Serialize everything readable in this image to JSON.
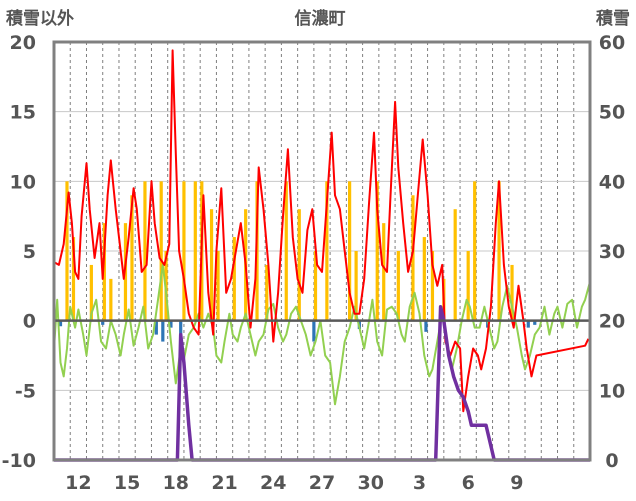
{
  "chart_data": {
    "type": "line",
    "title": "信濃町",
    "ylabel_left": "積雪以外",
    "ylabel_right": "積雪",
    "ylim_left": [
      -10,
      20
    ],
    "ylim_right": [
      0,
      60
    ],
    "yticks_left": [
      "-10",
      "-5",
      "0",
      "5",
      "10",
      "15",
      "20"
    ],
    "yticks_right": [
      "0",
      "10",
      "20",
      "30",
      "40",
      "50",
      "60"
    ],
    "xlim": [
      0,
      33
    ],
    "xtick_labels": [
      "12",
      "15",
      "18",
      "21",
      "24",
      "27",
      "30",
      "3",
      "6",
      "9"
    ],
    "xtick_positions": [
      1.5,
      4.5,
      7.5,
      10.5,
      13.5,
      16.5,
      19.5,
      22.5,
      25.5,
      28.5
    ],
    "grid": "vertical dashed daily",
    "colors": {
      "precipitation_pos": "#ffc000",
      "precipitation_neg": "#2e75b6",
      "temperature": "#ff0000",
      "other": "#92d050",
      "snow_depth": "#7030a0",
      "frame": "#808080",
      "zero_line": "#595959"
    },
    "series": [
      {
        "axis": "left",
        "style": "bars",
        "values": [
          [
            0.8,
            10
          ],
          [
            1.2,
            6
          ],
          [
            2.3,
            4
          ],
          [
            3.1,
            7
          ],
          [
            3.5,
            3
          ],
          [
            4.4,
            7
          ],
          [
            4.8,
            9
          ],
          [
            5.6,
            10
          ],
          [
            6.6,
            10
          ],
          [
            6.9,
            5
          ],
          [
            8.0,
            10
          ],
          [
            8.7,
            10
          ],
          [
            9.1,
            10
          ],
          [
            9.7,
            8
          ],
          [
            10.1,
            5
          ],
          [
            11.1,
            6
          ],
          [
            11.8,
            8
          ],
          [
            12.5,
            10
          ],
          [
            13.1,
            4
          ],
          [
            14.3,
            10
          ],
          [
            15.1,
            8
          ],
          [
            16.1,
            5
          ],
          [
            16.8,
            10
          ],
          [
            18.2,
            10
          ],
          [
            18.6,
            5
          ],
          [
            19.9,
            10
          ],
          [
            20.3,
            7
          ],
          [
            21.2,
            5
          ],
          [
            22.1,
            9
          ],
          [
            22.8,
            6
          ],
          [
            23.3,
            5
          ],
          [
            24.0,
            3
          ],
          [
            24.7,
            8
          ],
          [
            25.5,
            5
          ],
          [
            25.9,
            10
          ],
          [
            27.4,
            10
          ],
          [
            28.2,
            4
          ],
          [
            0.4,
            -0.4
          ],
          [
            3.0,
            -0.3
          ],
          [
            6.3,
            -1.0
          ],
          [
            6.7,
            -1.5
          ],
          [
            7.2,
            -0.5
          ],
          [
            7.8,
            -1.0
          ],
          [
            16.0,
            -1.5
          ],
          [
            18.8,
            -0.6
          ],
          [
            22.9,
            -0.8
          ],
          [
            26.7,
            -0.5
          ],
          [
            29.2,
            -0.5
          ],
          [
            29.6,
            -0.3
          ]
        ]
      },
      {
        "axis": "left",
        "style": "line",
        "values": [
          [
            0.0,
            4.2
          ],
          [
            0.3,
            4.0
          ],
          [
            0.6,
            5.5
          ],
          [
            0.9,
            9.2
          ],
          [
            1.1,
            7.0
          ],
          [
            1.3,
            3.5
          ],
          [
            1.5,
            3.0
          ],
          [
            1.7,
            7.5
          ],
          [
            2.0,
            11.3
          ],
          [
            2.2,
            8.0
          ],
          [
            2.5,
            4.5
          ],
          [
            2.8,
            7.0
          ],
          [
            3.0,
            3.0
          ],
          [
            3.3,
            9.0
          ],
          [
            3.5,
            11.5
          ],
          [
            3.8,
            8.0
          ],
          [
            4.1,
            5.0
          ],
          [
            4.3,
            3.0
          ],
          [
            4.6,
            6.0
          ],
          [
            4.9,
            9.5
          ],
          [
            5.1,
            8.0
          ],
          [
            5.4,
            3.5
          ],
          [
            5.7,
            4.0
          ],
          [
            6.0,
            10.0
          ],
          [
            6.2,
            7.0
          ],
          [
            6.5,
            4.5
          ],
          [
            6.8,
            4.0
          ],
          [
            7.1,
            5.5
          ],
          [
            7.3,
            19.4
          ],
          [
            7.5,
            12.0
          ],
          [
            7.7,
            5.0
          ],
          [
            8.0,
            3.0
          ],
          [
            8.3,
            0.5
          ],
          [
            8.6,
            -0.5
          ],
          [
            8.9,
            -1.0
          ],
          [
            9.2,
            9.0
          ],
          [
            9.5,
            2.0
          ],
          [
            9.8,
            -1.0
          ],
          [
            10.0,
            5.0
          ],
          [
            10.3,
            9.5
          ],
          [
            10.6,
            2.0
          ],
          [
            10.9,
            3.0
          ],
          [
            11.2,
            5.0
          ],
          [
            11.5,
            7.0
          ],
          [
            11.8,
            4.0
          ],
          [
            12.1,
            -0.5
          ],
          [
            12.4,
            3.0
          ],
          [
            12.6,
            11.0
          ],
          [
            12.9,
            8.0
          ],
          [
            13.2,
            4.0
          ],
          [
            13.5,
            -1.5
          ],
          [
            13.8,
            2.0
          ],
          [
            14.1,
            7.5
          ],
          [
            14.4,
            12.3
          ],
          [
            14.7,
            6.0
          ],
          [
            15.0,
            3.0
          ],
          [
            15.3,
            2.0
          ],
          [
            15.6,
            6.5
          ],
          [
            15.9,
            8.0
          ],
          [
            16.2,
            4.0
          ],
          [
            16.5,
            3.5
          ],
          [
            16.8,
            8.5
          ],
          [
            17.1,
            13.5
          ],
          [
            17.3,
            9.0
          ],
          [
            17.6,
            8.0
          ],
          [
            17.9,
            5.0
          ],
          [
            18.2,
            2.0
          ],
          [
            18.5,
            0.5
          ],
          [
            18.8,
            0.5
          ],
          [
            19.1,
            3.0
          ],
          [
            19.4,
            8.5
          ],
          [
            19.7,
            13.5
          ],
          [
            19.9,
            8.0
          ],
          [
            20.2,
            4.0
          ],
          [
            20.5,
            3.5
          ],
          [
            20.7,
            8.5
          ],
          [
            21.0,
            15.7
          ],
          [
            21.2,
            11.0
          ],
          [
            21.5,
            7.0
          ],
          [
            21.8,
            3.5
          ],
          [
            22.1,
            5.0
          ],
          [
            22.4,
            9.0
          ],
          [
            22.7,
            13.0
          ],
          [
            23.0,
            9.0
          ],
          [
            23.3,
            4.0
          ],
          [
            23.6,
            2.5
          ],
          [
            23.9,
            4.0
          ],
          [
            24.1,
            -1.5
          ],
          [
            24.4,
            -2.5
          ],
          [
            24.7,
            -1.5
          ],
          [
            25.0,
            -2.0
          ],
          [
            25.2,
            -6.5
          ],
          [
            25.5,
            -4.0
          ],
          [
            25.8,
            -2.0
          ],
          [
            26.1,
            -2.5
          ],
          [
            26.3,
            -3.5
          ],
          [
            26.6,
            -2.0
          ],
          [
            26.9,
            1.0
          ],
          [
            27.2,
            7.0
          ],
          [
            27.4,
            10.0
          ],
          [
            27.7,
            4.0
          ],
          [
            28.0,
            1.0
          ],
          [
            28.3,
            -0.5
          ],
          [
            28.6,
            2.5
          ],
          [
            28.9,
            0.0
          ],
          [
            29.1,
            -2.0
          ],
          [
            29.4,
            -4.0
          ],
          [
            29.7,
            -2.5
          ],
          [
            32.7,
            -1.8
          ],
          [
            32.9,
            -1.3
          ]
        ]
      },
      {
        "axis": "left",
        "style": "line",
        "values": [
          [
            0.0,
            -2.0
          ],
          [
            0.2,
            1.5
          ],
          [
            0.4,
            -3.0
          ],
          [
            0.6,
            -4.0
          ],
          [
            0.8,
            -2.0
          ],
          [
            1.0,
            1.0
          ],
          [
            1.3,
            -0.5
          ],
          [
            1.5,
            0.8
          ],
          [
            1.8,
            -1.0
          ],
          [
            2.0,
            -2.5
          ],
          [
            2.3,
            0.5
          ],
          [
            2.6,
            1.5
          ],
          [
            2.9,
            -1.5
          ],
          [
            3.2,
            -2.0
          ],
          [
            3.5,
            0.0
          ],
          [
            3.8,
            -1.0
          ],
          [
            4.1,
            -2.5
          ],
          [
            4.3,
            -1.0
          ],
          [
            4.6,
            0.8
          ],
          [
            4.9,
            -1.8
          ],
          [
            5.2,
            -0.5
          ],
          [
            5.5,
            1.0
          ],
          [
            5.8,
            -2.0
          ],
          [
            6.1,
            -1.0
          ],
          [
            6.4,
            1.5
          ],
          [
            6.7,
            4.0
          ],
          [
            6.9,
            2.0
          ],
          [
            7.2,
            -1.5
          ],
          [
            7.5,
            -4.5
          ],
          [
            7.8,
            -2.0
          ],
          [
            8.0,
            -2.8
          ],
          [
            8.3,
            -1.0
          ],
          [
            8.6,
            -0.5
          ],
          [
            8.9,
            0.5
          ],
          [
            9.2,
            -0.5
          ],
          [
            9.5,
            0.5
          ],
          [
            9.8,
            -0.5
          ],
          [
            10.0,
            -2.5
          ],
          [
            10.3,
            -3.0
          ],
          [
            10.5,
            -1.5
          ],
          [
            10.8,
            0.5
          ],
          [
            11.0,
            -1.0
          ],
          [
            11.3,
            -1.5
          ],
          [
            11.5,
            -0.5
          ],
          [
            11.8,
            0.5
          ],
          [
            12.1,
            -1.0
          ],
          [
            12.4,
            -2.5
          ],
          [
            12.6,
            -1.5
          ],
          [
            12.9,
            -1.0
          ],
          [
            13.2,
            0.8
          ],
          [
            13.5,
            1.2
          ],
          [
            13.8,
            -0.5
          ],
          [
            14.1,
            -1.5
          ],
          [
            14.3,
            -1.0
          ],
          [
            14.6,
            0.5
          ],
          [
            14.9,
            1.0
          ],
          [
            15.2,
            0.0
          ],
          [
            15.5,
            -1.0
          ],
          [
            15.8,
            -2.5
          ],
          [
            16.1,
            -1.5
          ],
          [
            16.4,
            0.0
          ],
          [
            16.7,
            -2.5
          ],
          [
            17.0,
            -3.0
          ],
          [
            17.3,
            -6.0
          ],
          [
            17.6,
            -4.0
          ],
          [
            17.9,
            -1.5
          ],
          [
            18.2,
            -0.5
          ],
          [
            18.5,
            1.0
          ],
          [
            18.8,
            -0.5
          ],
          [
            19.1,
            -2.0
          ],
          [
            19.4,
            0.0
          ],
          [
            19.6,
            1.5
          ],
          [
            19.9,
            -1.5
          ],
          [
            20.2,
            -2.5
          ],
          [
            20.5,
            0.8
          ],
          [
            20.8,
            1.0
          ],
          [
            21.1,
            0.5
          ],
          [
            21.4,
            -1.0
          ],
          [
            21.6,
            -1.5
          ],
          [
            21.9,
            1.0
          ],
          [
            22.2,
            2.0
          ],
          [
            22.5,
            0.5
          ],
          [
            22.8,
            -2.5
          ],
          [
            23.1,
            -4.0
          ],
          [
            23.3,
            -3.5
          ],
          [
            23.6,
            -1.5
          ],
          [
            23.9,
            0.5
          ],
          [
            24.2,
            -1.5
          ],
          [
            24.5,
            -3.5
          ],
          [
            24.8,
            -2.0
          ],
          [
            25.1,
            0.0
          ],
          [
            25.4,
            1.5
          ],
          [
            25.6,
            1.0
          ],
          [
            25.9,
            -0.5
          ],
          [
            26.2,
            -0.5
          ],
          [
            26.5,
            1.0
          ],
          [
            26.8,
            -0.5
          ],
          [
            27.1,
            -2.0
          ],
          [
            27.3,
            -1.5
          ],
          [
            27.6,
            1.0
          ],
          [
            27.9,
            2.5
          ],
          [
            28.2,
            1.0
          ],
          [
            28.5,
            -0.5
          ],
          [
            28.8,
            -2.5
          ],
          [
            29.0,
            -3.5
          ],
          [
            29.3,
            -2.5
          ],
          [
            29.6,
            -1.0
          ],
          [
            29.9,
            -0.5
          ],
          [
            30.2,
            1.0
          ],
          [
            30.5,
            -1.0
          ],
          [
            30.8,
            0.5
          ],
          [
            31.0,
            1.0
          ],
          [
            31.3,
            -0.5
          ],
          [
            31.6,
            1.2
          ],
          [
            31.9,
            1.5
          ],
          [
            32.2,
            -0.5
          ],
          [
            32.5,
            1.0
          ],
          [
            32.7,
            1.5
          ],
          [
            33.0,
            2.8
          ]
        ]
      },
      {
        "axis": "right",
        "style": "line",
        "values": [
          [
            0.0,
            0.0
          ],
          [
            7.6,
            0.0
          ],
          [
            7.8,
            18.0
          ],
          [
            8.0,
            14.0
          ],
          [
            8.3,
            5.0
          ],
          [
            8.5,
            0.0
          ],
          [
            23.5,
            0.0
          ],
          [
            23.8,
            22.0
          ],
          [
            24.0,
            20.0
          ],
          [
            24.3,
            15.0
          ],
          [
            24.6,
            12.0
          ],
          [
            24.9,
            10.0
          ],
          [
            25.2,
            9.0
          ],
          [
            25.5,
            7.0
          ],
          [
            25.7,
            5.0
          ],
          [
            26.0,
            5.0
          ],
          [
            26.3,
            5.0
          ],
          [
            26.6,
            5.0
          ],
          [
            26.8,
            3.0
          ],
          [
            27.1,
            0.0
          ],
          [
            33.0,
            0.0
          ]
        ]
      }
    ]
  }
}
